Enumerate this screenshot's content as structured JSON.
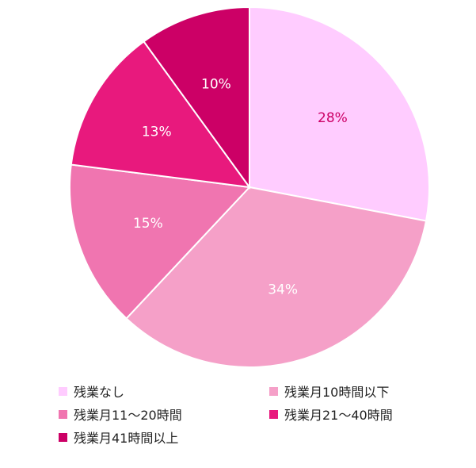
{
  "chart_data": {
    "type": "pie",
    "title": "",
    "start_angle_deg": 0,
    "direction": "clockwise",
    "slices": [
      {
        "label": "残業なし",
        "value": 28,
        "display": "28%",
        "color": "#ffccff",
        "label_color": "#cc0066"
      },
      {
        "label": "残業月10時間以下",
        "value": 34,
        "display": "34%",
        "color": "#f5a0c8",
        "label_color": "#ffffff"
      },
      {
        "label": "残業月11～20時間",
        "value": 15,
        "display": "15%",
        "color": "#f075b0",
        "label_color": "#ffffff"
      },
      {
        "label": "残業月21～40時間",
        "value": 13,
        "display": "13%",
        "color": "#e8197d",
        "label_color": "#ffffff"
      },
      {
        "label": "残業月41時間以上",
        "value": 10,
        "display": "10%",
        "color": "#cc0066",
        "label_color": "#ffffff"
      }
    ],
    "legend_position": "bottom"
  }
}
